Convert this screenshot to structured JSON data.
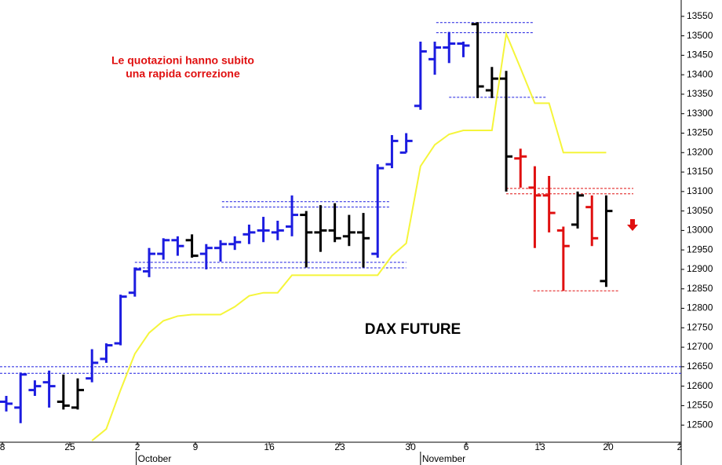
{
  "chart_data": {
    "type": "ohlc",
    "title": "DAX FUTURE",
    "annotation": [
      "Le quotazioni hanno subito",
      "una rapida correzione"
    ],
    "annotation_color": "#e01010",
    "x": [
      0,
      1,
      2,
      3,
      4,
      5,
      6,
      7,
      8,
      9,
      10,
      11,
      12,
      13,
      14,
      15,
      16,
      17,
      18,
      19,
      20,
      21,
      22,
      23,
      24,
      25,
      26,
      27,
      28,
      29,
      30,
      31,
      32,
      33,
      34,
      35,
      36,
      37,
      38,
      39,
      40,
      41,
      42
    ],
    "open": [
      12560,
      12545,
      12590,
      12610,
      12560,
      12545,
      12620,
      12670,
      12710,
      12840,
      12895,
      12940,
      12975,
      12975,
      12940,
      12955,
      12965,
      12990,
      13000,
      12995,
      13010,
      13040,
      12995,
      13000,
      12985,
      12995,
      12940,
      13170,
      13200,
      13320,
      13440,
      13470,
      13480,
      13530,
      13360,
      13390,
      13185,
      13110,
      13090,
      13000,
      13015,
      13060,
      12870
    ],
    "high": [
      12575,
      12635,
      12615,
      12640,
      12630,
      12620,
      12695,
      12710,
      12835,
      12905,
      12955,
      12980,
      12985,
      12990,
      12965,
      12975,
      12985,
      13015,
      13035,
      13025,
      13090,
      13050,
      13065,
      13070,
      13040,
      13045,
      13170,
      13245,
      13250,
      13485,
      13485,
      13510,
      13485,
      13535,
      13420,
      13410,
      13210,
      13165,
      13140,
      13010,
      13100,
      13090,
      13090
    ],
    "low": [
      12535,
      12505,
      12575,
      12545,
      12540,
      12540,
      12610,
      12660,
      12705,
      12830,
      12880,
      12925,
      12935,
      12930,
      12900,
      12920,
      12950,
      12965,
      12970,
      12975,
      12985,
      12905,
      12945,
      12970,
      12960,
      12905,
      12930,
      13160,
      13200,
      13310,
      13400,
      13430,
      13445,
      13340,
      13340,
      13100,
      13110,
      12955,
      12995,
      12845,
      13005,
      12960,
      12855
    ],
    "close": [
      12555,
      12630,
      12600,
      12600,
      12550,
      12590,
      12660,
      12705,
      12830,
      12900,
      12940,
      12975,
      12960,
      12935,
      12955,
      12965,
      12970,
      12995,
      13000,
      13000,
      13040,
      12995,
      13000,
      12980,
      12995,
      12980,
      13160,
      13230,
      13230,
      13460,
      13470,
      13480,
      13475,
      13370,
      13390,
      13190,
      13190,
      13090,
      13045,
      12960,
      13090,
      12980,
      13050
    ],
    "colors": [
      "#1c1ce0",
      "#1c1ce0",
      "#1c1ce0",
      "#1c1ce0",
      "#000000",
      "#000000",
      "#1c1ce0",
      "#1c1ce0",
      "#1c1ce0",
      "#1c1ce0",
      "#1c1ce0",
      "#1c1ce0",
      "#1c1ce0",
      "#000000",
      "#1c1ce0",
      "#1c1ce0",
      "#1c1ce0",
      "#1c1ce0",
      "#1c1ce0",
      "#1c1ce0",
      "#1c1ce0",
      "#000000",
      "#000000",
      "#000000",
      "#000000",
      "#000000",
      "#1c1ce0",
      "#1c1ce0",
      "#1c1ce0",
      "#1c1ce0",
      "#1c1ce0",
      "#1c1ce0",
      "#1c1ce0",
      "#000000",
      "#000000",
      "#000000",
      "#e01010",
      "#e01010",
      "#e01010",
      "#e01010",
      "#000000",
      "#e01010",
      "#000000"
    ],
    "moving_average": {
      "color": "#f5f53a",
      "values": [
        null,
        null,
        null,
        null,
        null,
        null,
        12460,
        12490,
        12590,
        12683,
        12737,
        12768,
        12780,
        12784,
        12784,
        12784,
        12804,
        12832,
        12840,
        12840,
        12885,
        12885,
        12885,
        12885,
        12885,
        12885,
        12885,
        12935,
        12967,
        13165,
        13220,
        13247,
        13257,
        13257,
        13257,
        13505,
        13417,
        13327,
        13327,
        13200,
        13200,
        13200,
        13200
      ]
    },
    "reference_lines": [
      {
        "value": 12650,
        "from": -0.44,
        "to": 47.25,
        "color": "#1c1ce0"
      },
      {
        "value": 12633,
        "from": -0.44,
        "to": 47.25,
        "color": "#1c1ce0"
      },
      {
        "value": 13534,
        "from": 30.1,
        "to": 36.9,
        "color": "#1c1ce0"
      },
      {
        "value": 13508,
        "from": 30.1,
        "to": 36.9,
        "color": "#1c1ce0"
      },
      {
        "value": 13342,
        "from": 31.0,
        "to": 37.8,
        "color": "#1c1ce0"
      },
      {
        "value": 13074,
        "from": 15.1,
        "to": 26.9,
        "color": "#1c1ce0"
      },
      {
        "value": 13060,
        "from": 15.1,
        "to": 26.9,
        "color": "#1c1ce0"
      },
      {
        "value": 12918,
        "from": 9.0,
        "to": 28.0,
        "color": "#1c1ce0"
      },
      {
        "value": 12904,
        "from": 9.0,
        "to": 28.0,
        "color": "#1c1ce0"
      },
      {
        "value": 13108,
        "from": 35.0,
        "to": 43.9,
        "color": "#e01010"
      },
      {
        "value": 13094,
        "from": 35.0,
        "to": 43.9,
        "color": "#e01010"
      },
      {
        "value": 12845,
        "from": 36.9,
        "to": 42.9,
        "color": "#e01010"
      }
    ],
    "xlim": [
      -0.44,
      47.25
    ],
    "xticks": [
      {
        "value": -0.27,
        "label": "8"
      },
      {
        "value": 4.45,
        "label": "25"
      },
      {
        "value": 9.18,
        "label": "2"
      },
      {
        "value": 13.24,
        "label": "9"
      },
      {
        "value": 18.41,
        "label": "16"
      },
      {
        "value": 23.35,
        "label": "23"
      },
      {
        "value": 28.3,
        "label": "30"
      },
      {
        "value": 32.2,
        "label": "6"
      },
      {
        "value": 37.36,
        "label": "13"
      },
      {
        "value": 42.14,
        "label": "20"
      },
      {
        "value": 47.14,
        "label": "2"
      }
    ],
    "months": [
      {
        "value": 9.1,
        "label": "October"
      },
      {
        "value": 29.0,
        "label": "November"
      }
    ],
    "ylim": [
      12456,
      13592
    ],
    "yticks": [
      12500,
      12550,
      12600,
      12650,
      12700,
      12750,
      12800,
      12850,
      12900,
      12950,
      13000,
      13050,
      13100,
      13150,
      13200,
      13250,
      13300,
      13350,
      13400,
      13450,
      13500,
      13550
    ]
  }
}
